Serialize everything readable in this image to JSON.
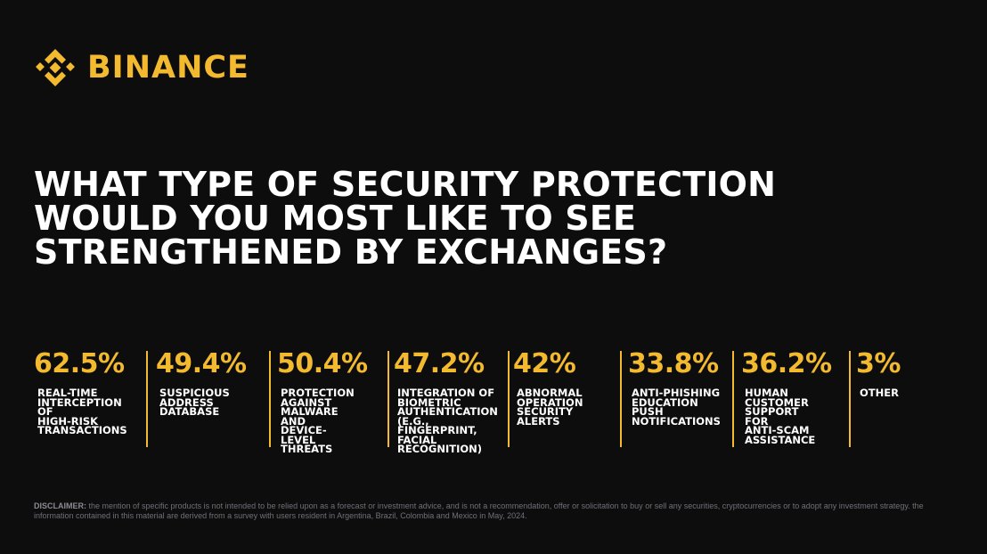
{
  "brand": {
    "name": "BINANCE",
    "accent_color": "#F3BA2F",
    "logo_icon": "binance-diamond-logo"
  },
  "headline": {
    "lines": [
      "WHAT TYPE OF SECURITY PROTECTION",
      "WOULD YOU MOST LIKE TO SEE",
      "STRENGTHENED BY EXCHANGES?"
    ]
  },
  "stats": [
    {
      "value": "62.5%",
      "label": "REAL-TIME\nINTERCEPTION OF\nHIGH-RISK\nTRANSACTIONS"
    },
    {
      "value": "49.4%",
      "label": "SUSPICIOUS\nADDRESS\nDATABASE"
    },
    {
      "value": "50.4%",
      "label": "PROTECTION\nAGAINST\nMALWARE AND\nDEVICE-LEVEL\nTHREATS"
    },
    {
      "value": "47.2%",
      "label": "INTEGRATION OF\nBIOMETRIC\nAUTHENTICATION\n(E.G., FINGERPRINT,\nFACIAL\nRECOGNITION)"
    },
    {
      "value": "42%",
      "label": "ABNORMAL\nOPERATION\nSECURITY ALERTS"
    },
    {
      "value": "33.8%",
      "label": "ANTI-PHISHING\nEDUCATION\nPUSH\nNOTIFICATIONS"
    },
    {
      "value": "36.2%",
      "label": "HUMAN\nCUSTOMER\nSUPPORT FOR\nANTI-SCAM\nASSISTANCE"
    },
    {
      "value": "3%",
      "label": "OTHER"
    }
  ],
  "disclaimer": {
    "label": "DISCLAIMER:",
    "text": " the mention of specific products is not intended to be relied upon as a forecast or investment advice, and is not a recommendation, offer or solicitation to buy or sell any securities, cryptocurrencies or to adopt any investment strategy. the information contained in this material are derived from a survey with users resident in Argentina, Brazil, Colombia and Mexico in May, 2024."
  }
}
